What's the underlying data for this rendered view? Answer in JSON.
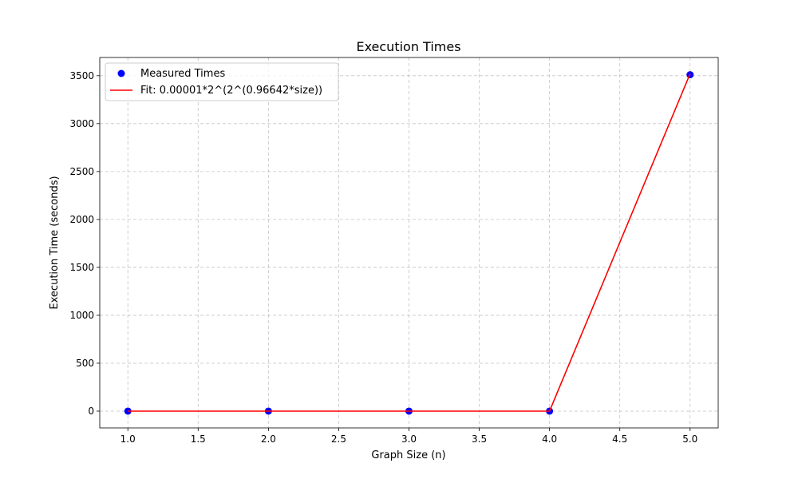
{
  "chart_data": {
    "type": "scatter",
    "title": "Execution Times",
    "xlabel": "Graph Size (n)",
    "ylabel": "Execution Time (seconds)",
    "xlim": [
      0.8,
      5.2
    ],
    "ylim": [
      -175,
      3690
    ],
    "xticks": [
      1.0,
      1.5,
      2.0,
      2.5,
      3.0,
      3.5,
      4.0,
      4.5,
      5.0
    ],
    "xtick_labels": [
      "1.0",
      "1.5",
      "2.0",
      "2.5",
      "3.0",
      "3.5",
      "4.0",
      "4.5",
      "5.0"
    ],
    "yticks": [
      0,
      500,
      1000,
      1500,
      2000,
      2500,
      3000,
      3500
    ],
    "ytick_labels": [
      "0",
      "500",
      "1000",
      "1500",
      "2000",
      "2500",
      "3000",
      "3500"
    ],
    "grid": true,
    "legend_position": "top-left",
    "series": [
      {
        "name": "Measured Times",
        "kind": "scatter",
        "color": "#0000ff",
        "x": [
          1,
          2,
          3,
          4,
          5
        ],
        "y": [
          0,
          0,
          0,
          0,
          3510
        ]
      },
      {
        "name": "Fit: 0.00001*2^(2^(0.96642*size))",
        "kind": "line",
        "color": "#ff0000",
        "x": [
          1,
          2,
          3,
          4,
          5
        ],
        "y": [
          0,
          0,
          0,
          0,
          3520
        ]
      }
    ]
  }
}
